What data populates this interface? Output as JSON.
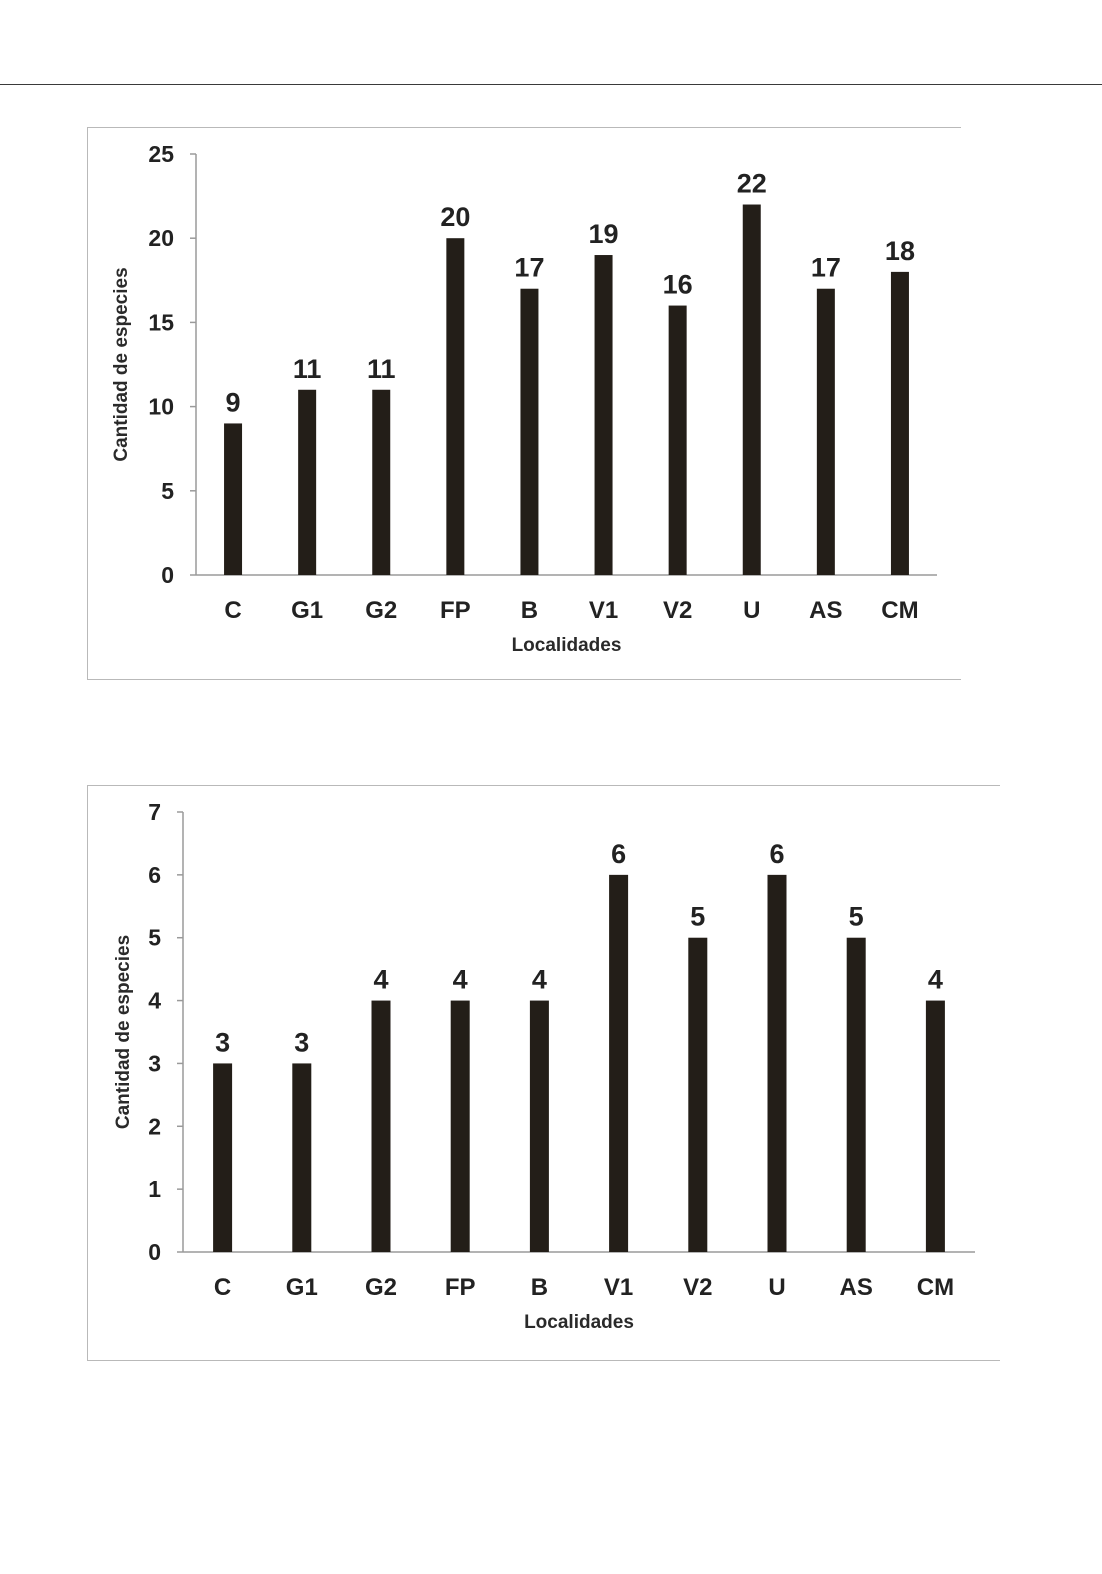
{
  "chart_data": [
    {
      "type": "bar",
      "categories": [
        "C",
        "G1",
        "G2",
        "FP",
        "B",
        "V1",
        "V2",
        "U",
        "AS",
        "CM"
      ],
      "values": [
        9,
        11,
        11,
        20,
        17,
        19,
        16,
        22,
        17,
        18
      ],
      "title": "",
      "xlabel": "Localidades",
      "ylabel": "Cantidad de especies",
      "ylim": [
        0,
        25
      ],
      "yticks": [
        0,
        5,
        10,
        15,
        20,
        25
      ],
      "bar_color": "#231e18",
      "grid": false
    },
    {
      "type": "bar",
      "categories": [
        "C",
        "G1",
        "G2",
        "FP",
        "B",
        "V1",
        "V2",
        "U",
        "AS",
        "CM"
      ],
      "values": [
        3,
        3,
        4,
        4,
        4,
        6,
        5,
        6,
        5,
        4
      ],
      "title": "",
      "xlabel": "Localidades",
      "ylabel": "Cantidad de especies",
      "ylim": [
        0,
        7
      ],
      "yticks": [
        0,
        1,
        2,
        3,
        4,
        5,
        6,
        7
      ],
      "bar_color": "#231e18",
      "grid": false
    }
  ]
}
